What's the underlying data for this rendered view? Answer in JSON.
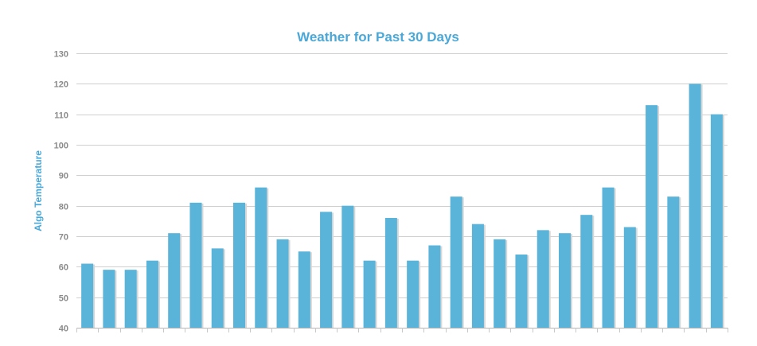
{
  "chart_data": {
    "type": "bar",
    "title": "Weather for Past 30 Days",
    "xlabel": "",
    "ylabel": "Algo Temperature",
    "ylim": [
      40,
      130
    ],
    "yticks": [
      40,
      50,
      60,
      70,
      80,
      90,
      100,
      110,
      120,
      130
    ],
    "grid": true,
    "legend": "none",
    "bar_color": "#5ab4da",
    "values": [
      61,
      59,
      59,
      62,
      71,
      81,
      66,
      81,
      86,
      69,
      65,
      78,
      80,
      62,
      76,
      62,
      67,
      83,
      74,
      69,
      64,
      72,
      71,
      77,
      86,
      73,
      113,
      83,
      120,
      110
    ]
  }
}
